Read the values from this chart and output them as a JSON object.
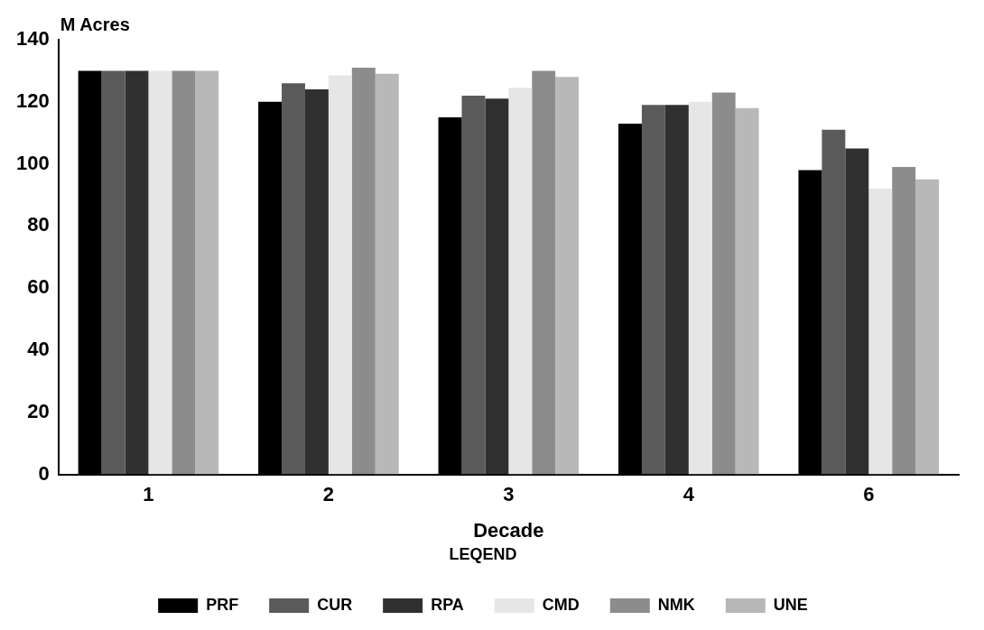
{
  "chart_data": {
    "type": "bar",
    "ylabel": "M Acres",
    "xlabel": "Decade",
    "legend_title": "LEQEND",
    "categories": [
      "1",
      "2",
      "3",
      "4",
      "6"
    ],
    "series": [
      {
        "name": "PRF",
        "color": "#000000",
        "values": [
          130,
          120,
          115,
          113,
          98
        ]
      },
      {
        "name": "CUR",
        "color": "#5a5a5a",
        "values": [
          130,
          126,
          122,
          119,
          111
        ]
      },
      {
        "name": "RPA",
        "color": "#303030",
        "values": [
          130,
          124,
          121,
          119,
          105
        ]
      },
      {
        "name": "CMD",
        "color": "#e6e6e6",
        "values": [
          130,
          128.5,
          124.5,
          120,
          92
        ]
      },
      {
        "name": "NMK",
        "color": "#8c8c8c",
        "values": [
          130,
          131,
          130,
          123,
          99
        ]
      },
      {
        "name": "UNE",
        "color": "#b8b8b8",
        "values": [
          130,
          129,
          128,
          118,
          95
        ]
      }
    ],
    "ylim": [
      0,
      140
    ],
    "yticks": [
      0,
      20,
      40,
      60,
      80,
      100,
      120,
      140
    ],
    "grid": false,
    "legend": "bottom"
  }
}
